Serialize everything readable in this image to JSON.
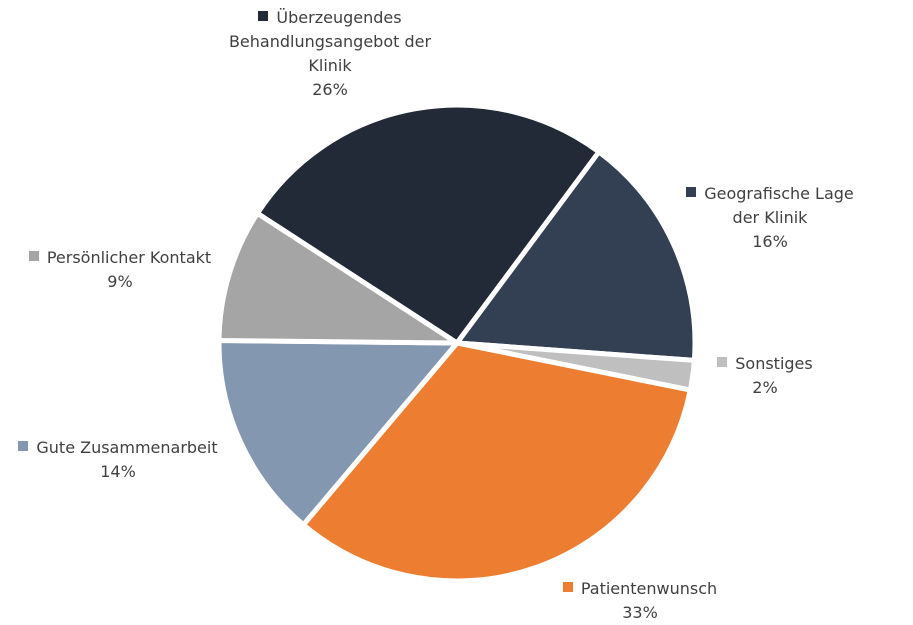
{
  "chart_data": {
    "type": "pie",
    "categories": [
      "Überzeugendes Behandlungsangebot der Klinik",
      "Geografische Lage der Klinik",
      "Sonstiges",
      "Patientenwunsch",
      "Gute Zusammenarbeit",
      "Persönlicher Kontakt"
    ],
    "values": [
      26,
      16,
      2,
      33,
      14,
      9
    ],
    "value_labels": [
      "26%",
      "16%",
      "2%",
      "33%",
      "14%",
      "9%"
    ],
    "colors": [
      "#222a38",
      "#333f52",
      "#bfbfbf",
      "#ed7d31",
      "#8497b0",
      "#a5a5a5"
    ]
  }
}
